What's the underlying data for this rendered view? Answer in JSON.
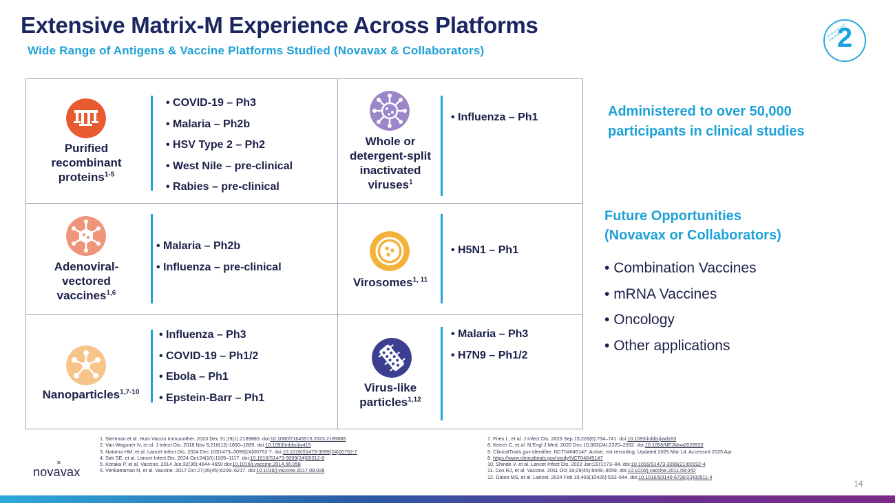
{
  "slide": {
    "title": "Extensive Matrix-M Experience Across Platforms",
    "subtitle": "Wide Range of Antigens & Vaccine Platforms Studied (Novavax & Collaborators)",
    "badge_number": "2",
    "badge_arc_text": "STRATEGIC PRIORITY",
    "page_number": "14"
  },
  "colors": {
    "accent": "#1ea1d6",
    "navy": "#1b2560",
    "orange_icon": "#e85a30",
    "purple_icon": "#9b86c9",
    "salmon_icon": "#f0957a",
    "gold_icon": "#f3b23a",
    "peach_icon": "#f7c48a",
    "indigo_icon": "#3a3f8f"
  },
  "platforms": [
    {
      "icon": "protein-icon",
      "label_lines": [
        "Purified",
        "recombinant"
      ],
      "label_last": "proteins",
      "label_sup": "1-5",
      "items": [
        "COVID-19 – Ph3",
        "Malaria – Ph2b",
        "HSV Type 2 – Ph2",
        "West Nile – pre-clinical",
        "Rabies – pre-clinical"
      ]
    },
    {
      "icon": "virus-icon",
      "label_lines": [
        "Whole or",
        "detergent-split",
        "inactivated"
      ],
      "label_last": "viruses",
      "label_sup": "1",
      "items": [
        "Influenza – Ph1"
      ]
    },
    {
      "icon": "adenovirus-icon",
      "label_lines": [
        "Adenoviral-",
        "vectored"
      ],
      "label_last": "vaccines",
      "label_sup": "1,6",
      "items": [
        "Malaria – Ph2b",
        "Influenza – pre-clinical"
      ]
    },
    {
      "icon": "virosome-icon",
      "label_lines": [],
      "label_last": "Virosomes",
      "label_sup": "1, 11",
      "items": [
        "H5N1 – Ph1"
      ]
    },
    {
      "icon": "nanoparticle-icon",
      "label_lines": [],
      "label_last": "Nanoparticles",
      "label_sup": "1,7-10",
      "items": [
        "Influenza – Ph3",
        "COVID-19 – Ph1/2",
        "Ebola – Ph1",
        "Epstein-Barr – Ph1"
      ]
    },
    {
      "icon": "vlp-icon",
      "label_lines": [
        "Virus-like"
      ],
      "label_last": "particles",
      "label_sup": "1,12",
      "items": [
        "Malaria – Ph3",
        "H7N9 – Ph1/2"
      ]
    }
  ],
  "administered": [
    "Administered to over 50,000",
    "participants in clinical studies"
  ],
  "future": {
    "heading": [
      "Future Opportunities",
      "(Novavax or Collaborators)"
    ],
    "items": [
      "Combination Vaccines",
      "mRNA Vaccines",
      "Oncology",
      "Other applications"
    ]
  },
  "logo_text": "novavax",
  "references_left": [
    {
      "text": "1.  Stertman et al. Hum Vaccin Immunother. 2023 Dec 31;19(1):2189885. doi:",
      "link": "10.1080/21645515.2023.2189885"
    },
    {
      "text": "2.  Van Wagoner N, et al. J Infect Dis. 2018 Nov 5;218(12):1890–1899. doi:",
      "link": "10.1093/infdis/jiy415"
    },
    {
      "text": "3.  Natama HM, et al. Lancet Infect Dis. 2024 Dec 10S1473–3099(24)00752-7. doi:",
      "link": "10.1016/S1473-3099(24)00752-7"
    },
    {
      "text": "4.  Sirk SE, et al. Lancet Infect Dis. 2024 Oct;24(10):1105–1117. doi:",
      "link": "10.1016/S1473-3099(24)00312-8"
    },
    {
      "text": "5.  Koraka P, et al. Vaccine. 2014 Jun;32(36):4644-4650 doi:",
      "link": "10.1016/j.vaccine.2014.06.058"
    },
    {
      "text": "6.  Venkatraman N, et al. Vaccine. 2017 Oct 27;35(45):6208–6217. doi:",
      "link": "10.1016/j.vaccine.2017.09.028"
    }
  ],
  "references_right": [
    {
      "text": "7.  Fries L, et al. J Infect Dis. 2023 Sep 15;228(6):734–741. doi:",
      "link": "10.1093/infdis/jiad163"
    },
    {
      "text": "8.  Keech C, et al. N Engl J Med. 2020 Dec 10;383(24):2320–2332. doi:",
      "link": "10.1056/NEJMoa2026920"
    },
    {
      "text": "9.  ClinicalTrials.gov identifier: NCT04645147. Active, not recruiting. Updated 2025 Mar 14. Accessed 2025 Apr",
      "link": ""
    },
    {
      "text": "     8. ",
      "link": "https://www.clinicaltrials.gov/study/NCT04645147"
    },
    {
      "text": "10. Shinde V, et al. Lancet Infect Dis. 2022 Jan;22(1):73–84. doi:",
      "link": "10.1016/S1473-3099(21)00192-4"
    },
    {
      "text": "11.  Cox RJ, et al. Vaccine. 2011 Oct 19;29(45):8049–8059. doi:",
      "link": "10.1016/j.vaccine.2011.08.042"
    },
    {
      "text": "12.  Datoo MS, et al. Lancet. 2024 Feb 10;403(10426):533–544. doi:",
      "link": "10.1016/S0140-6736(23)02511-4"
    }
  ]
}
